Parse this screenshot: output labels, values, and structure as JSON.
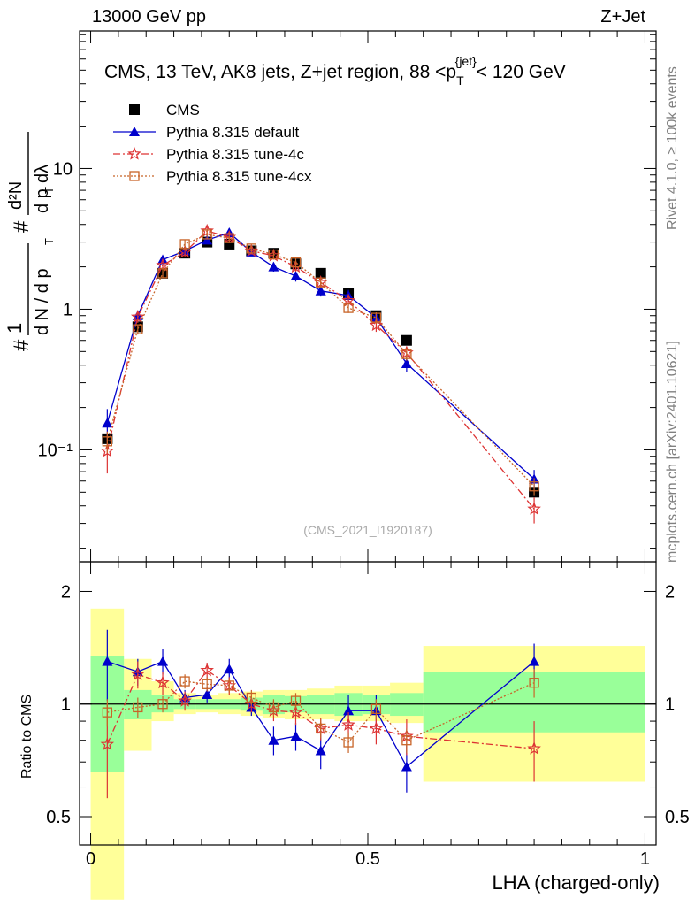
{
  "header": {
    "energy_label": "13000 GeV pp",
    "process_label": "Z+Jet"
  },
  "side_labels": {
    "rivet": "Rivet 4.1.0, ≥ 100k events",
    "mcplots": "mcplots.cern.ch [arXiv:2401.10621]"
  },
  "colors": {
    "cms": "#000000",
    "default": "#0000cc",
    "tune4c": "#dd3333",
    "tune4cx": "#c86428",
    "band_green": "#99ff99",
    "band_yellow": "#ffff99"
  },
  "chart_data": [
    {
      "type": "scatter",
      "panel": "main",
      "title": "CMS, 13 TeV, AK8 jets, Z+jet region, 88 <p_T^{jet}< 120 GeV",
      "title_parts": {
        "main": "CMS, 13 TeV, AK8 jets, Z+jet region, 88 <p",
        "sub": "T",
        "sup": "{jet}",
        "tail": "< 120 GeV"
      },
      "ylabel": "1/(dN/dp_T) d²N/(dp_T dλ)",
      "ylabel_parts": {
        "frac1_num": "1",
        "frac1_den": "d N / d p",
        "frac1_sub": "T",
        "frac2_num": "d²N",
        "frac2_den": "d p",
        "frac2_sub": "T",
        "frac2_tail": " dλ",
        "hash": "#"
      },
      "yscale": "log",
      "ylim": [
        0.016,
        95
      ],
      "xlim": [
        -0.02,
        1.02
      ],
      "y_tick_labels": [
        {
          "value": 10,
          "text": "10"
        },
        {
          "value": 1,
          "text": "1"
        },
        {
          "value": 0.1,
          "text": "10⁻¹"
        }
      ],
      "watermark": "(CMS_2021_I1920187)",
      "legend": [
        "CMS",
        "Pythia 8.315 default",
        "Pythia 8.315 tune-4c",
        "Pythia 8.315 tune-4cx"
      ],
      "legend_position": "top-left",
      "bins": [
        [
          0,
          0.06
        ],
        [
          0.06,
          0.11
        ],
        [
          0.11,
          0.15
        ],
        [
          0.15,
          0.19
        ],
        [
          0.19,
          0.23
        ],
        [
          0.23,
          0.27
        ],
        [
          0.27,
          0.31
        ],
        [
          0.31,
          0.35
        ],
        [
          0.35,
          0.39
        ],
        [
          0.39,
          0.44
        ],
        [
          0.44,
          0.49
        ],
        [
          0.49,
          0.54
        ],
        [
          0.54,
          0.6
        ],
        [
          0.6,
          1.0
        ]
      ],
      "x": [
        0.03,
        0.085,
        0.13,
        0.17,
        0.21,
        0.25,
        0.29,
        0.33,
        0.37,
        0.415,
        0.465,
        0.515,
        0.57,
        0.8
      ],
      "series": [
        {
          "name": "CMS",
          "key": "cms",
          "marker": "square",
          "values": [
            0.12,
            0.75,
            1.8,
            2.5,
            3.0,
            2.9,
            2.6,
            2.5,
            2.1,
            1.8,
            1.3,
            0.9,
            0.6,
            0.05
          ]
        },
        {
          "name": "Pythia 8.315 default",
          "key": "default",
          "marker": "triangle",
          "line": "solid",
          "values": [
            0.155,
            0.9,
            2.25,
            2.6,
            3.1,
            3.5,
            2.55,
            2.0,
            1.72,
            1.35,
            1.25,
            0.87,
            0.41,
            0.062
          ],
          "errors": [
            0.04,
            0.08,
            0.15,
            0.2,
            0.2,
            0.25,
            0.15,
            0.15,
            0.15,
            0.12,
            0.12,
            0.08,
            0.05,
            0.01
          ]
        },
        {
          "name": "Pythia 8.315 tune-4c",
          "key": "tune4c",
          "marker": "star",
          "line": "dashdot",
          "values": [
            0.098,
            0.88,
            2.05,
            2.55,
            3.6,
            3.25,
            2.6,
            2.4,
            2.0,
            1.55,
            1.15,
            0.77,
            0.49,
            0.038
          ],
          "errors": [
            0.03,
            0.08,
            0.12,
            0.2,
            0.25,
            0.25,
            0.15,
            0.15,
            0.15,
            0.12,
            0.1,
            0.08,
            0.05,
            0.008
          ]
        },
        {
          "name": "Pythia 8.315 tune-4cx",
          "key": "tune4cx",
          "marker": "open-square",
          "line": "dotted",
          "values": [
            0.115,
            0.72,
            1.8,
            2.9,
            3.4,
            3.2,
            2.7,
            2.45,
            2.15,
            1.55,
            1.02,
            0.87,
            0.48,
            0.055
          ],
          "errors": [
            0.02,
            0.06,
            0.12,
            0.2,
            0.25,
            0.25,
            0.15,
            0.15,
            0.15,
            0.1,
            0.08,
            0.08,
            0.05,
            0.008
          ]
        }
      ]
    },
    {
      "type": "scatter",
      "panel": "ratio",
      "ylabel": "Ratio to CMS",
      "xlabel": "LHA (charged-only)",
      "yscale": "log",
      "ylim": [
        0.42,
        2.4
      ],
      "xlim": [
        -0.02,
        1.02
      ],
      "y_tick_labels": [
        {
          "value": 2,
          "text": "2"
        },
        {
          "value": 1,
          "text": "1"
        },
        {
          "value": 0.5,
          "text": "0.5"
        }
      ],
      "x_tick_labels": [
        {
          "value": 0,
          "text": "0"
        },
        {
          "value": 0.5,
          "text": "0.5"
        },
        {
          "value": 1,
          "text": "1"
        }
      ],
      "bands": {
        "green_lo": [
          0.66,
          0.91,
          0.95,
          0.97,
          0.97,
          0.97,
          0.96,
          0.94,
          0.95,
          0.94,
          0.93,
          0.94,
          0.93,
          0.84
        ],
        "green_hi": [
          1.34,
          1.09,
          1.06,
          1.03,
          1.03,
          1.03,
          1.04,
          1.06,
          1.05,
          1.06,
          1.07,
          1.06,
          1.07,
          1.22
        ],
        "yellow_lo": [
          0.3,
          0.75,
          0.9,
          0.94,
          0.95,
          0.94,
          0.93,
          0.92,
          0.91,
          0.91,
          0.9,
          0.9,
          0.89,
          0.62
        ],
        "yellow_hi": [
          1.8,
          1.32,
          1.15,
          1.07,
          1.06,
          1.07,
          1.08,
          1.09,
          1.09,
          1.1,
          1.12,
          1.12,
          1.14,
          1.43
        ]
      },
      "series": [
        {
          "name": "Pythia 8.315 default",
          "key": "default",
          "values": [
            1.3,
            1.22,
            1.3,
            1.04,
            1.06,
            1.24,
            0.98,
            0.8,
            0.82,
            0.75,
            0.96,
            0.96,
            0.68,
            1.3
          ],
          "errors": [
            0.28,
            0.1,
            0.1,
            0.05,
            0.05,
            0.08,
            0.05,
            0.07,
            0.07,
            0.08,
            0.1,
            0.1,
            0.1,
            0.15
          ]
        },
        {
          "name": "Pythia 8.315 tune-4c",
          "key": "tune4c",
          "values": [
            0.78,
            1.2,
            1.14,
            1.02,
            1.23,
            1.12,
            1.0,
            0.96,
            0.95,
            0.86,
            0.88,
            0.86,
            0.82,
            0.76
          ],
          "errors": [
            0.22,
            0.1,
            0.08,
            0.06,
            0.06,
            0.06,
            0.05,
            0.06,
            0.07,
            0.06,
            0.07,
            0.08,
            0.09,
            0.14
          ]
        },
        {
          "name": "Pythia 8.315 tune-4cx",
          "key": "tune4cx",
          "values": [
            0.95,
            0.98,
            1.0,
            1.15,
            1.13,
            1.12,
            1.04,
            0.98,
            1.02,
            0.86,
            0.79,
            0.97,
            0.8,
            1.14
          ],
          "errors": [
            0.08,
            0.06,
            0.05,
            0.05,
            0.05,
            0.05,
            0.05,
            0.05,
            0.05,
            0.05,
            0.05,
            0.06,
            0.06,
            0.1
          ]
        }
      ]
    }
  ]
}
